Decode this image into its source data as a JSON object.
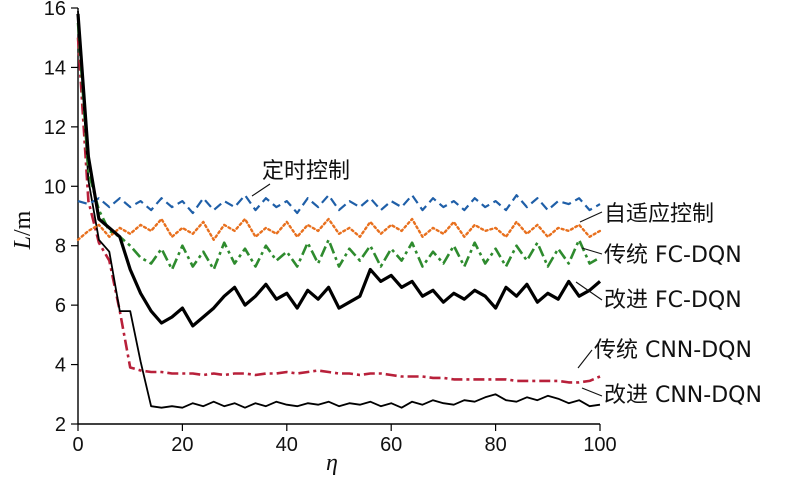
{
  "chart_data": {
    "type": "line",
    "title": "",
    "xlabel": "η",
    "ylabel_var": "L",
    "ylabel_unit": "/m",
    "xlim": [
      0,
      100
    ],
    "ylim": [
      2,
      16
    ],
    "x_ticks": [
      0,
      20,
      40,
      60,
      80,
      100
    ],
    "y_ticks": [
      2,
      4,
      6,
      8,
      10,
      12,
      14,
      16
    ],
    "grid": false,
    "legend": "inline-annotations",
    "series": [
      {
        "name": "定时控制",
        "color": "#1f5fa8",
        "style": "dashed",
        "x": [
          0,
          2,
          4,
          6,
          8,
          10,
          12,
          14,
          16,
          18,
          20,
          22,
          24,
          26,
          28,
          30,
          32,
          34,
          36,
          38,
          40,
          42,
          44,
          46,
          48,
          50,
          52,
          54,
          56,
          58,
          60,
          62,
          64,
          66,
          68,
          70,
          72,
          74,
          76,
          78,
          80,
          82,
          84,
          86,
          88,
          90,
          92,
          94,
          96,
          98,
          100
        ],
        "values": [
          9.5,
          9.4,
          9.6,
          9.3,
          9.6,
          9.3,
          9.5,
          9.2,
          9.6,
          9.3,
          9.5,
          9.1,
          9.6,
          9.2,
          9.5,
          9.3,
          9.7,
          9.2,
          9.6,
          9.3,
          9.5,
          9.1,
          9.6,
          9.3,
          9.7,
          9.2,
          9.5,
          9.3,
          9.6,
          9.2,
          9.5,
          9.3,
          9.7,
          9.2,
          9.6,
          9.3,
          9.5,
          9.2,
          9.6,
          9.3,
          9.5,
          9.2,
          9.7,
          9.3,
          9.6,
          9.2,
          9.5,
          9.4,
          9.6,
          9.2,
          9.4
        ]
      },
      {
        "name": "自适应控制",
        "color": "#e8701e",
        "style": "dotted",
        "x": [
          0,
          2,
          4,
          6,
          8,
          10,
          12,
          14,
          16,
          18,
          20,
          22,
          24,
          26,
          28,
          30,
          32,
          34,
          36,
          38,
          40,
          42,
          44,
          46,
          48,
          50,
          52,
          54,
          56,
          58,
          60,
          62,
          64,
          66,
          68,
          70,
          72,
          74,
          76,
          78,
          80,
          82,
          84,
          86,
          88,
          90,
          92,
          94,
          96,
          98,
          100
        ],
        "values": [
          8.2,
          8.5,
          8.7,
          8.3,
          8.6,
          8.4,
          8.7,
          8.5,
          8.9,
          8.3,
          8.6,
          8.4,
          8.8,
          8.2,
          8.7,
          8.5,
          8.9,
          8.3,
          8.6,
          8.4,
          8.8,
          8.3,
          8.7,
          8.5,
          8.9,
          8.4,
          8.6,
          8.3,
          8.8,
          8.4,
          8.7,
          8.5,
          8.9,
          8.3,
          8.6,
          8.4,
          8.8,
          8.3,
          8.7,
          8.5,
          8.6,
          8.3,
          8.8,
          8.4,
          8.7,
          8.3,
          8.6,
          8.5,
          8.7,
          8.3,
          8.5
        ]
      },
      {
        "name": "传统 FC-DQN",
        "color": "#2e8b2e",
        "style": "dashdot",
        "x": [
          0,
          2,
          4,
          6,
          8,
          10,
          12,
          14,
          16,
          18,
          20,
          22,
          24,
          26,
          28,
          30,
          32,
          34,
          36,
          38,
          40,
          42,
          44,
          46,
          48,
          50,
          52,
          54,
          56,
          58,
          60,
          62,
          64,
          66,
          68,
          70,
          72,
          74,
          76,
          78,
          80,
          82,
          84,
          86,
          88,
          90,
          92,
          94,
          96,
          98,
          100
        ],
        "values": [
          15.5,
          10.5,
          9.2,
          8.5,
          8.3,
          8.0,
          7.6,
          7.4,
          7.9,
          7.2,
          8.0,
          7.3,
          7.8,
          7.2,
          8.1,
          7.4,
          7.9,
          7.3,
          8.0,
          7.5,
          7.8,
          7.3,
          8.1,
          7.4,
          8.2,
          7.3,
          7.9,
          7.5,
          8.0,
          7.3,
          7.9,
          7.5,
          8.1,
          7.3,
          7.8,
          7.4,
          8.0,
          7.3,
          8.1,
          7.4,
          7.9,
          7.3,
          8.0,
          7.5,
          8.1,
          7.3,
          7.9,
          7.4,
          8.2,
          7.4,
          7.6
        ]
      },
      {
        "name": "改进 FC-DQN",
        "color": "#000000",
        "style": "solid-thick",
        "x": [
          0,
          2,
          4,
          6,
          8,
          10,
          12,
          14,
          16,
          18,
          20,
          22,
          24,
          26,
          28,
          30,
          32,
          34,
          36,
          38,
          40,
          42,
          44,
          46,
          48,
          50,
          52,
          54,
          56,
          58,
          60,
          62,
          64,
          66,
          68,
          70,
          72,
          74,
          76,
          78,
          80,
          82,
          84,
          86,
          88,
          90,
          92,
          94,
          96,
          98,
          100
        ],
        "values": [
          15.8,
          11.0,
          8.9,
          8.6,
          8.3,
          7.2,
          6.4,
          5.8,
          5.4,
          5.6,
          5.9,
          5.3,
          5.6,
          5.9,
          6.3,
          6.6,
          6.0,
          6.3,
          6.7,
          6.2,
          6.4,
          5.9,
          6.5,
          6.2,
          6.6,
          5.9,
          6.1,
          6.3,
          7.2,
          6.8,
          7.0,
          6.6,
          6.8,
          6.3,
          6.5,
          6.1,
          6.4,
          6.2,
          6.5,
          6.3,
          5.9,
          6.6,
          6.3,
          6.7,
          6.1,
          6.4,
          6.2,
          6.8,
          6.3,
          6.5,
          6.8
        ]
      },
      {
        "name": "传统 CNN-DQN",
        "color": "#b8203a",
        "style": "dashdot",
        "x": [
          0,
          2,
          4,
          6,
          8,
          10,
          12,
          14,
          16,
          18,
          20,
          22,
          24,
          26,
          28,
          30,
          32,
          34,
          36,
          38,
          40,
          42,
          44,
          46,
          48,
          50,
          52,
          54,
          56,
          58,
          60,
          62,
          64,
          66,
          68,
          70,
          72,
          74,
          76,
          78,
          80,
          82,
          84,
          86,
          88,
          90,
          92,
          94,
          96,
          98,
          100
        ],
        "values": [
          15.0,
          9.5,
          8.1,
          7.5,
          5.8,
          3.9,
          3.8,
          3.75,
          3.75,
          3.7,
          3.7,
          3.7,
          3.65,
          3.7,
          3.65,
          3.7,
          3.7,
          3.65,
          3.7,
          3.7,
          3.75,
          3.7,
          3.75,
          3.8,
          3.75,
          3.7,
          3.7,
          3.65,
          3.7,
          3.7,
          3.65,
          3.6,
          3.6,
          3.6,
          3.55,
          3.55,
          3.5,
          3.5,
          3.5,
          3.5,
          3.5,
          3.5,
          3.45,
          3.45,
          3.45,
          3.45,
          3.45,
          3.4,
          3.4,
          3.45,
          3.6
        ]
      },
      {
        "name": "改进 CNN-DQN",
        "color": "#000000",
        "style": "solid-thin",
        "x": [
          0,
          2,
          4,
          6,
          8,
          10,
          12,
          14,
          16,
          18,
          20,
          22,
          24,
          26,
          28,
          30,
          32,
          34,
          36,
          38,
          40,
          42,
          44,
          46,
          48,
          50,
          52,
          54,
          56,
          58,
          60,
          62,
          64,
          66,
          68,
          70,
          72,
          74,
          76,
          78,
          80,
          82,
          84,
          86,
          88,
          90,
          92,
          94,
          96,
          98,
          100
        ],
        "values": [
          15.9,
          10.2,
          8.2,
          7.8,
          5.8,
          5.8,
          4.1,
          2.6,
          2.55,
          2.6,
          2.55,
          2.7,
          2.6,
          2.75,
          2.6,
          2.7,
          2.55,
          2.7,
          2.6,
          2.75,
          2.65,
          2.6,
          2.7,
          2.65,
          2.75,
          2.6,
          2.7,
          2.65,
          2.75,
          2.6,
          2.7,
          2.55,
          2.75,
          2.65,
          2.8,
          2.7,
          2.65,
          2.8,
          2.75,
          2.9,
          3.0,
          2.8,
          2.75,
          2.9,
          2.8,
          2.95,
          2.85,
          2.7,
          2.8,
          2.6,
          2.65
        ]
      }
    ]
  }
}
